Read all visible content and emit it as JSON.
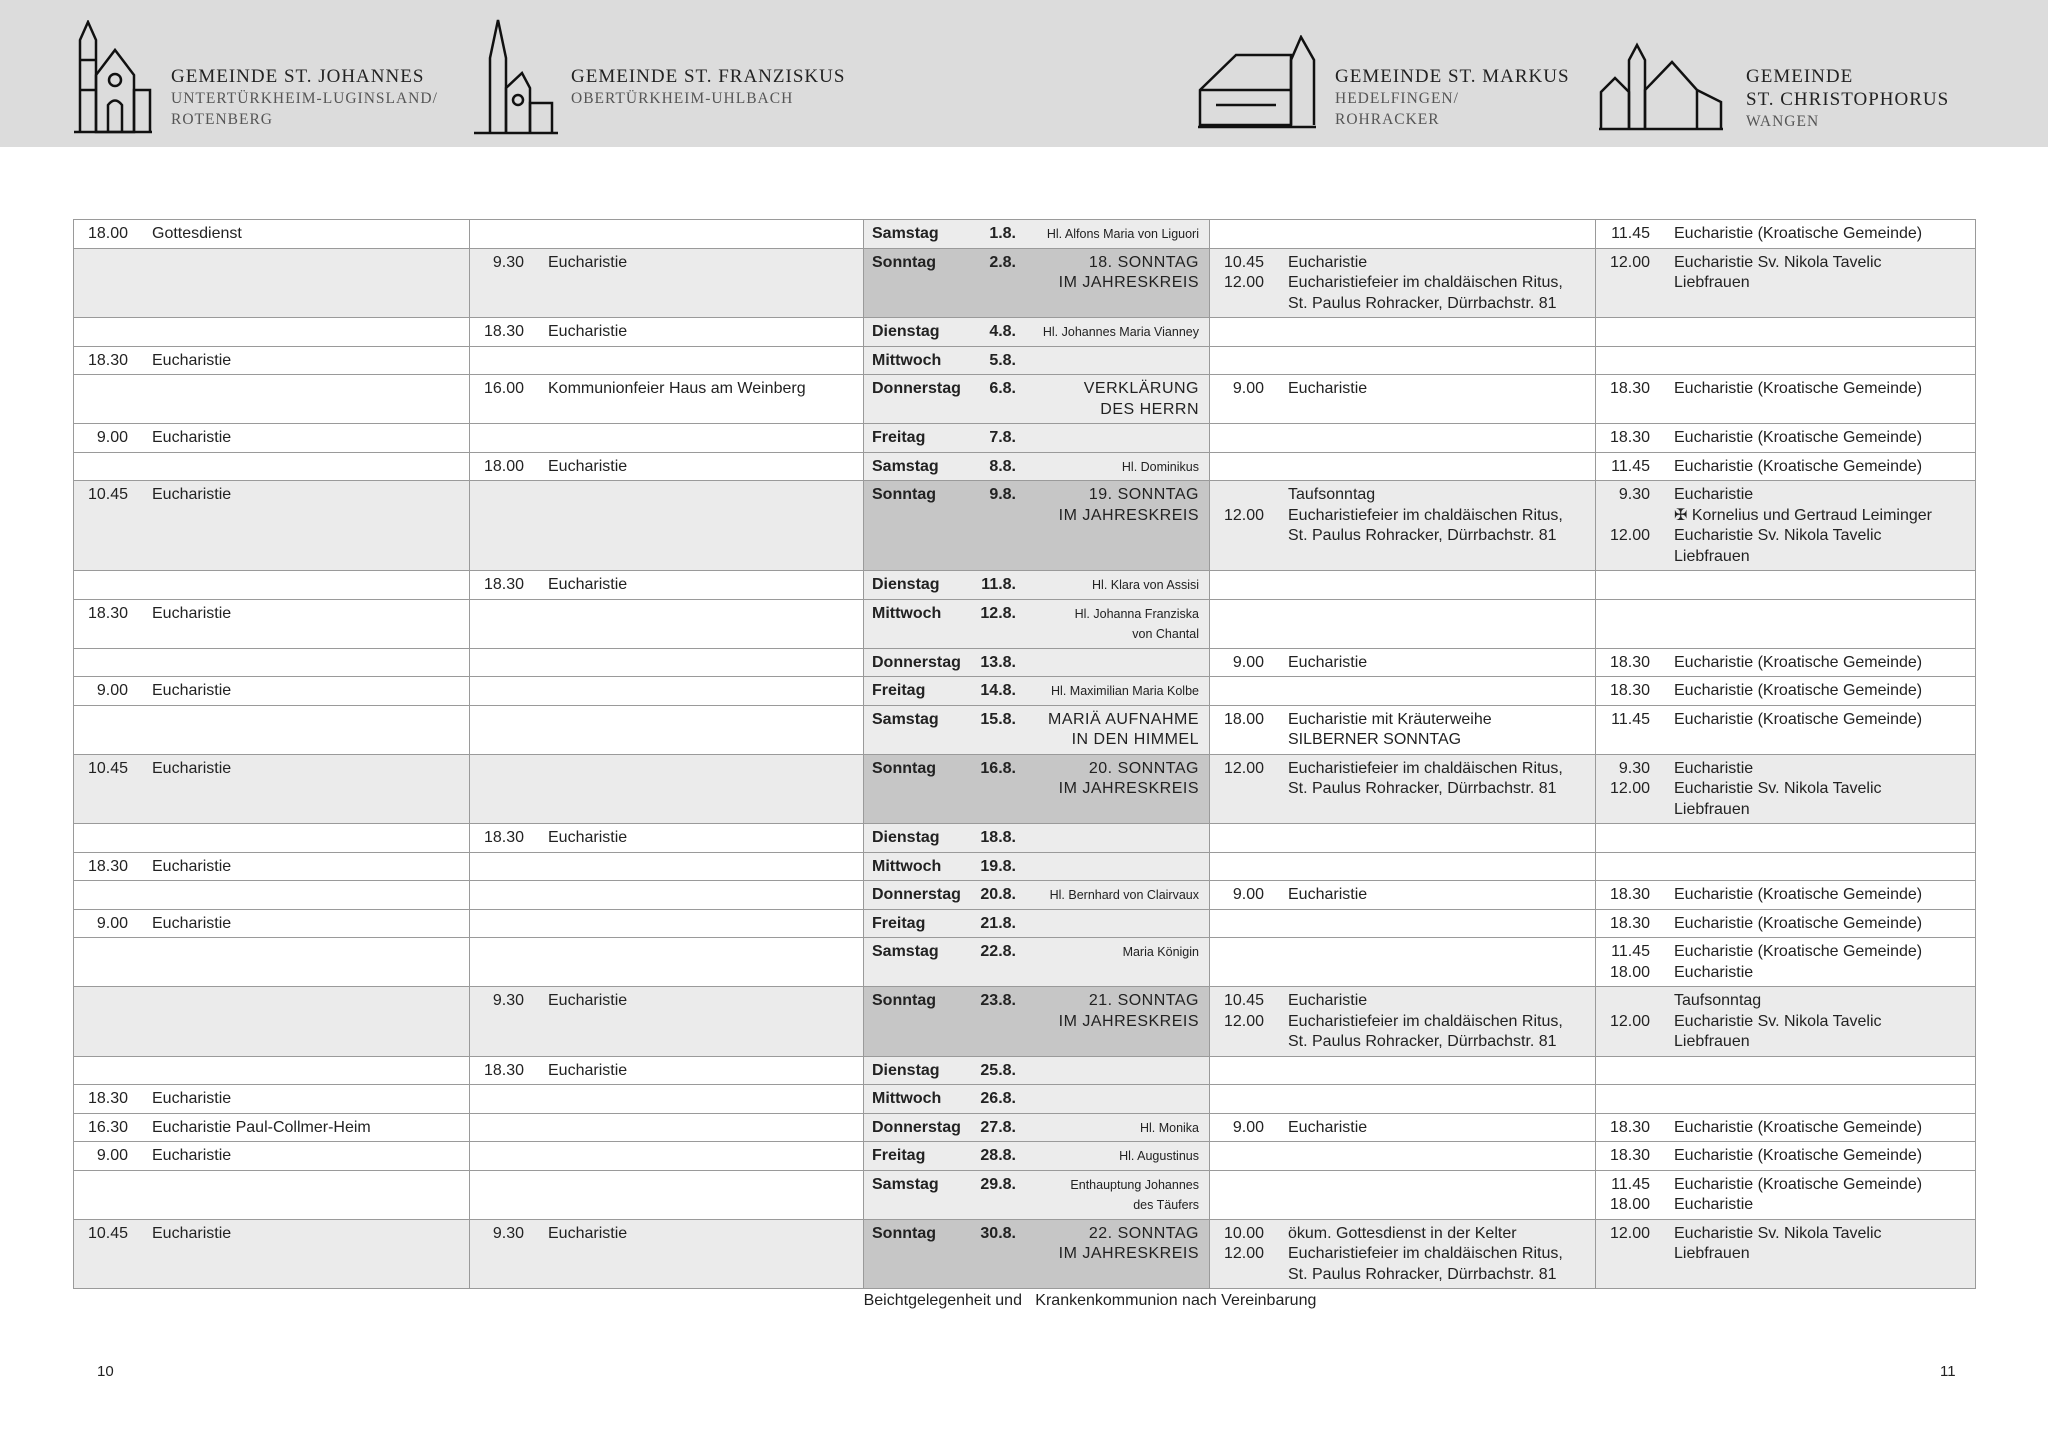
{
  "header": {
    "parishes": [
      {
        "title": "GEMEINDE ST. JOHANNES",
        "sub": [
          "UNTERTÜRKHEIM-LUGINSLAND/",
          "ROTENBERG"
        ]
      },
      {
        "title": "GEMEINDE ST. FRANZISKUS",
        "sub": [
          "OBERTÜRKHEIM-UHLBACH"
        ]
      },
      {
        "title": "GEMEINDE ST. MARKUS",
        "sub": [
          "HEDELFINGEN/",
          "ROHRACKER"
        ]
      },
      {
        "title": "GEMEINDE",
        "title2": "ST. CHRISTOPHORUS",
        "sub": [
          "WANGEN"
        ]
      }
    ]
  },
  "colors": {
    "header_bg": "#dcdcdc",
    "sunday_row": "#ebebeb",
    "sunday_date": "#c6c6c6",
    "date_col": "#ececec",
    "border": "#9a9a9a"
  },
  "rows": [
    {
      "wd": "Samstag",
      "dt": "1.8.",
      "feast": [
        "Hl. Alfons Maria von Liguori"
      ],
      "ft": "saint",
      "sun": false,
      "j": [
        [
          "18.00",
          "Gottesdienst"
        ]
      ],
      "f": [],
      "m": [],
      "c": [
        [
          "11.45",
          "Eucharistie (Kroatische Gemeinde)"
        ]
      ]
    },
    {
      "wd": "Sonntag",
      "dt": "2.8.",
      "feast": [
        "18. SONNTAG",
        "IM JAHRESKREIS"
      ],
      "ft": "solemn",
      "sun": true,
      "j": [],
      "f": [
        [
          "9.30",
          "Eucharistie"
        ]
      ],
      "m": [
        [
          "10.45",
          "Eucharistie"
        ],
        [
          "12.00",
          "Eucharistiefeier im chaldäischen Ritus,"
        ],
        [
          "",
          "St. Paulus Rohracker, Dürrbachstr. 81"
        ]
      ],
      "c": [
        [
          "12.00",
          "Eucharistie Sv. Nikola Tavelic"
        ],
        [
          "",
          "Liebfrauen"
        ]
      ]
    },
    {
      "wd": "Dienstag",
      "dt": "4.8.",
      "feast": [
        "Hl. Johannes Maria Vianney"
      ],
      "ft": "saint",
      "sun": false,
      "j": [],
      "f": [
        [
          "18.30",
          "Eucharistie"
        ]
      ],
      "m": [],
      "c": []
    },
    {
      "wd": "Mittwoch",
      "dt": "5.8.",
      "feast": [],
      "ft": "saint",
      "sun": false,
      "j": [
        [
          "18.30",
          "Eucharistie"
        ]
      ],
      "f": [],
      "m": [],
      "c": []
    },
    {
      "wd": "Donnerstag",
      "dt": "6.8.",
      "feast": [
        "VERKLÄRUNG",
        "DES HERRN"
      ],
      "ft": "solemn",
      "sun": false,
      "j": [],
      "f": [
        [
          "16.00",
          "Kommunionfeier Haus am Weinberg"
        ]
      ],
      "m": [
        [
          "9.00",
          "Eucharistie"
        ]
      ],
      "c": [
        [
          "18.30",
          "Eucharistie (Kroatische Gemeinde)"
        ]
      ]
    },
    {
      "wd": "Freitag",
      "dt": "7.8.",
      "feast": [],
      "ft": "saint",
      "sun": false,
      "j": [
        [
          "9.00",
          "Eucharistie"
        ]
      ],
      "f": [],
      "m": [],
      "c": [
        [
          "18.30",
          "Eucharistie (Kroatische Gemeinde)"
        ]
      ]
    },
    {
      "wd": "Samstag",
      "dt": "8.8.",
      "feast": [
        "Hl. Dominikus"
      ],
      "ft": "saint",
      "sun": false,
      "j": [],
      "f": [
        [
          "18.00",
          "Eucharistie"
        ]
      ],
      "m": [],
      "c": [
        [
          "11.45",
          "Eucharistie (Kroatische Gemeinde)"
        ]
      ]
    },
    {
      "wd": "Sonntag",
      "dt": "9.8.",
      "feast": [
        "19. SONNTAG",
        "IM JAHRESKREIS"
      ],
      "ft": "solemn",
      "sun": true,
      "j": [
        [
          "10.45",
          "Eucharistie"
        ]
      ],
      "f": [],
      "m": [
        [
          "",
          "Taufsonntag"
        ],
        [
          "12.00",
          "Eucharistiefeier im chaldäischen Ritus,"
        ],
        [
          "",
          "St. Paulus Rohracker, Dürrbachstr. 81"
        ]
      ],
      "c": [
        [
          "9.30",
          "Eucharistie"
        ],
        [
          "",
          "✠ Kornelius und Gertraud Leiminger"
        ],
        [
          "12.00",
          "Eucharistie Sv. Nikola Tavelic"
        ],
        [
          "",
          "Liebfrauen"
        ]
      ]
    },
    {
      "wd": "Dienstag",
      "dt": "11.8.",
      "feast": [
        "Hl. Klara von Assisi"
      ],
      "ft": "saint",
      "sun": false,
      "j": [],
      "f": [
        [
          "18.30",
          "Eucharistie"
        ]
      ],
      "m": [],
      "c": []
    },
    {
      "wd": "Mittwoch",
      "dt": "12.8.",
      "feast": [
        "Hl. Johanna Franziska",
        "von Chantal"
      ],
      "ft": "saint",
      "sun": false,
      "j": [
        [
          "18.30",
          "Eucharistie"
        ]
      ],
      "f": [],
      "m": [],
      "c": []
    },
    {
      "wd": "Donnerstag",
      "dt": "13.8.",
      "feast": [],
      "ft": "saint",
      "sun": false,
      "j": [],
      "f": [],
      "m": [
        [
          "9.00",
          "Eucharistie"
        ]
      ],
      "c": [
        [
          "18.30",
          "Eucharistie (Kroatische Gemeinde)"
        ]
      ]
    },
    {
      "wd": "Freitag",
      "dt": "14.8.",
      "feast": [
        "Hl. Maximilian Maria Kolbe"
      ],
      "ft": "saint",
      "sun": false,
      "j": [
        [
          "9.00",
          "Eucharistie"
        ]
      ],
      "f": [],
      "m": [],
      "c": [
        [
          "18.30",
          "Eucharistie (Kroatische Gemeinde)"
        ]
      ]
    },
    {
      "wd": "Samstag",
      "dt": "15.8.",
      "feast": [
        "MARIÄ AUFNAHME",
        "IN DEN HIMMEL"
      ],
      "ft": "solemn",
      "sun": false,
      "j": [],
      "f": [],
      "m": [
        [
          "18.00",
          "Eucharistie mit Kräuterweihe"
        ],
        [
          "",
          "SILBERNER SONNTAG"
        ]
      ],
      "c": [
        [
          "11.45",
          "Eucharistie (Kroatische Gemeinde)"
        ]
      ]
    },
    {
      "wd": "Sonntag",
      "dt": "16.8.",
      "feast": [
        "20. SONNTAG",
        "IM JAHRESKREIS"
      ],
      "ft": "solemn",
      "sun": true,
      "j": [
        [
          "10.45",
          "Eucharistie"
        ]
      ],
      "f": [],
      "m": [
        [
          "12.00",
          "Eucharistiefeier im chaldäischen Ritus,"
        ],
        [
          "",
          "St. Paulus Rohracker, Dürrbachstr. 81"
        ]
      ],
      "c": [
        [
          "9.30",
          "Eucharistie"
        ],
        [
          "12.00",
          "Eucharistie Sv. Nikola Tavelic"
        ],
        [
          "",
          "Liebfrauen"
        ]
      ]
    },
    {
      "wd": "Dienstag",
      "dt": "18.8.",
      "feast": [],
      "ft": "saint",
      "sun": false,
      "j": [],
      "f": [
        [
          "18.30",
          "Eucharistie"
        ]
      ],
      "m": [],
      "c": []
    },
    {
      "wd": "Mittwoch",
      "dt": "19.8.",
      "feast": [],
      "ft": "saint",
      "sun": false,
      "j": [
        [
          "18.30",
          "Eucharistie"
        ]
      ],
      "f": [],
      "m": [],
      "c": []
    },
    {
      "wd": "Donnerstag",
      "dt": "20.8.",
      "feast": [
        "Hl. Bernhard von Clairvaux"
      ],
      "ft": "saint",
      "sun": false,
      "j": [],
      "f": [],
      "m": [
        [
          "9.00",
          "Eucharistie"
        ]
      ],
      "c": [
        [
          "18.30",
          "Eucharistie (Kroatische Gemeinde)"
        ]
      ]
    },
    {
      "wd": "Freitag",
      "dt": "21.8.",
      "feast": [],
      "ft": "saint",
      "sun": false,
      "j": [
        [
          "9.00",
          "Eucharistie"
        ]
      ],
      "f": [],
      "m": [],
      "c": [
        [
          "18.30",
          "Eucharistie (Kroatische Gemeinde)"
        ]
      ]
    },
    {
      "wd": "Samstag",
      "dt": "22.8.",
      "feast": [
        "Maria Königin"
      ],
      "ft": "saint",
      "sun": false,
      "j": [],
      "f": [],
      "m": [],
      "c": [
        [
          "11.45",
          "Eucharistie (Kroatische Gemeinde)"
        ],
        [
          "18.00",
          "Eucharistie"
        ]
      ]
    },
    {
      "wd": "Sonntag",
      "dt": "23.8.",
      "feast": [
        "21. SONNTAG",
        "IM JAHRESKREIS"
      ],
      "ft": "solemn",
      "sun": true,
      "j": [],
      "f": [
        [
          "9.30",
          "Eucharistie"
        ]
      ],
      "m": [
        [
          "10.45",
          "Eucharistie"
        ],
        [
          "12.00",
          "Eucharistiefeier im chaldäischen Ritus,"
        ],
        [
          "",
          "St. Paulus Rohracker, Dürrbachstr. 81"
        ]
      ],
      "c": [
        [
          "",
          "Taufsonntag"
        ],
        [
          "12.00",
          "Eucharistie Sv. Nikola Tavelic"
        ],
        [
          "",
          "Liebfrauen"
        ]
      ]
    },
    {
      "wd": "Dienstag",
      "dt": "25.8.",
      "feast": [],
      "ft": "saint",
      "sun": false,
      "j": [],
      "f": [
        [
          "18.30",
          "Eucharistie"
        ]
      ],
      "m": [],
      "c": []
    },
    {
      "wd": "Mittwoch",
      "dt": "26.8.",
      "feast": [],
      "ft": "saint",
      "sun": false,
      "j": [
        [
          "18.30",
          "Eucharistie"
        ]
      ],
      "f": [],
      "m": [],
      "c": []
    },
    {
      "wd": "Donnerstag",
      "dt": "27.8.",
      "feast": [
        "Hl. Monika"
      ],
      "ft": "saint",
      "sun": false,
      "j": [
        [
          "16.30",
          "Eucharistie Paul-Collmer-Heim"
        ]
      ],
      "f": [],
      "m": [
        [
          "9.00",
          "Eucharistie"
        ]
      ],
      "c": [
        [
          "18.30",
          "Eucharistie (Kroatische Gemeinde)"
        ]
      ]
    },
    {
      "wd": "Freitag",
      "dt": "28.8.",
      "feast": [
        "Hl. Augustinus"
      ],
      "ft": "saint",
      "sun": false,
      "j": [
        [
          "9.00",
          "Eucharistie"
        ]
      ],
      "f": [],
      "m": [],
      "c": [
        [
          "18.30",
          "Eucharistie (Kroatische Gemeinde)"
        ]
      ]
    },
    {
      "wd": "Samstag",
      "dt": "29.8.",
      "feast": [
        "Enthauptung Johannes",
        "des Täufers"
      ],
      "ft": "saint",
      "sun": false,
      "j": [],
      "f": [],
      "m": [],
      "c": [
        [
          "11.45",
          "Eucharistie (Kroatische Gemeinde)"
        ],
        [
          "18.00",
          "Eucharistie"
        ]
      ]
    },
    {
      "wd": "Sonntag",
      "dt": "30.8.",
      "feast": [
        "22. SONNTAG",
        "IM JAHRESKREIS"
      ],
      "ft": "solemn",
      "sun": true,
      "j": [
        [
          "10.45",
          "Eucharistie"
        ]
      ],
      "f": [
        [
          "9.30",
          "Eucharistie"
        ]
      ],
      "m": [
        [
          "10.00",
          "ökum. Gottesdienst in der Kelter"
        ],
        [
          "12.00",
          "Eucharistiefeier im chaldäischen Ritus,"
        ],
        [
          "",
          "St. Paulus Rohracker, Dürrbachstr. 81"
        ]
      ],
      "c": [
        [
          "12.00",
          "Eucharistie Sv. Nikola Tavelic"
        ],
        [
          "",
          "Liebfrauen"
        ]
      ]
    }
  ],
  "footer": {
    "note": "Beichtgelegenheit und   Krankenkommunion nach Vereinbarung",
    "page_left": "10",
    "page_right": "11"
  }
}
